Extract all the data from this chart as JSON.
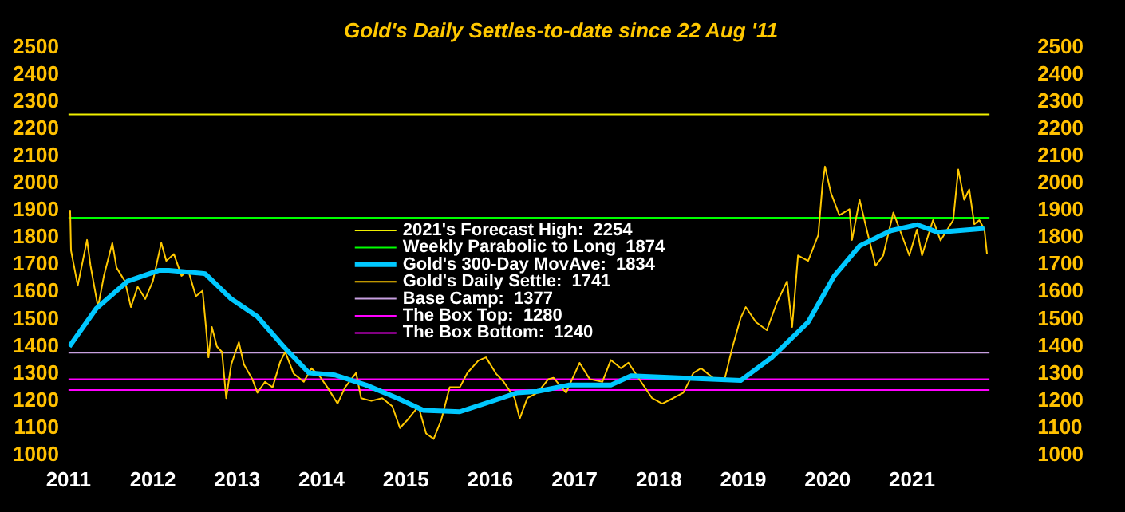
{
  "chart_data": {
    "type": "line",
    "title": "Gold's Daily Settles-to-date since 22 Aug '11",
    "xlim": [
      2011,
      2021.92
    ],
    "xticks": [
      2011,
      2012,
      2013,
      2014,
      2015,
      2016,
      2017,
      2018,
      2019,
      2020,
      2021
    ],
    "ylim": [
      1000,
      2500
    ],
    "yticks": [
      1000,
      1100,
      1200,
      1300,
      1400,
      1500,
      1600,
      1700,
      1800,
      1900,
      2000,
      2100,
      2200,
      2300,
      2400,
      2500
    ],
    "y2lim": [
      1000,
      2500
    ],
    "y2ticks": [
      1000,
      1100,
      1200,
      1300,
      1400,
      1500,
      1600,
      1700,
      1800,
      1900,
      2000,
      2100,
      2200,
      2300,
      2400,
      2500
    ],
    "grid": false,
    "legend": "center",
    "marker": "none",
    "line_style": "solid",
    "series": [
      {
        "name": "Gold's 300-Day MovAve:  1834",
        "color": "#00c8ff",
        "x": [
          2011.01,
          2011.33,
          2011.7,
          2012.07,
          2012.19,
          2012.62,
          2012.93,
          2013.24,
          2013.55,
          2013.85,
          2014.16,
          2014.53,
          2014.9,
          2015.21,
          2015.64,
          2016.13,
          2016.32,
          2016.56,
          2016.93,
          2017.43,
          2017.67,
          2018.23,
          2018.97,
          2019.34,
          2019.77,
          2020.08,
          2020.38,
          2020.75,
          2021.06,
          2021.31,
          2021.86
        ],
        "values": [
          1400,
          1540,
          1640,
          1680,
          1680,
          1668,
          1575,
          1510,
          1400,
          1303,
          1295,
          1258,
          1210,
          1165,
          1160,
          1210,
          1230,
          1235,
          1258,
          1258,
          1292,
          1285,
          1275,
          1360,
          1490,
          1660,
          1770,
          1826,
          1848,
          1820,
          1834
        ]
      },
      {
        "name": "Gold's Daily Settle:  1741",
        "color": "#ffc800",
        "x": [
          2011.01,
          2011.02,
          2011.03,
          2011.11,
          2011.22,
          2011.26,
          2011.35,
          2011.42,
          2011.52,
          2011.57,
          2011.67,
          2011.74,
          2011.82,
          2011.91,
          2012.0,
          2012.1,
          2012.16,
          2012.25,
          2012.34,
          2012.42,
          2012.51,
          2012.59,
          2012.63,
          2012.66,
          2012.7,
          2012.76,
          2012.82,
          2012.87,
          2012.93,
          2013.02,
          2013.08,
          2013.18,
          2013.24,
          2013.33,
          2013.42,
          2013.51,
          2013.57,
          2013.67,
          2013.79,
          2013.88,
          2013.98,
          2014.07,
          2014.19,
          2014.28,
          2014.41,
          2014.47,
          2014.59,
          2014.72,
          2014.84,
          2014.93,
          2015.02,
          2015.15,
          2015.24,
          2015.33,
          2015.42,
          2015.52,
          2015.64,
          2015.73,
          2015.86,
          2015.95,
          2016.07,
          2016.16,
          2016.29,
          2016.35,
          2016.44,
          2016.56,
          2016.69,
          2016.75,
          2016.9,
          2017.06,
          2017.18,
          2017.33,
          2017.43,
          2017.55,
          2017.64,
          2017.8,
          2017.92,
          2018.04,
          2018.17,
          2018.29,
          2018.41,
          2018.5,
          2018.66,
          2018.78,
          2018.87,
          2018.97,
          2019.03,
          2019.15,
          2019.28,
          2019.4,
          2019.52,
          2019.58,
          2019.65,
          2019.77,
          2019.89,
          2019.94,
          2019.97,
          2020.04,
          2020.14,
          2020.26,
          2020.29,
          2020.38,
          2020.48,
          2020.57,
          2020.66,
          2020.78,
          2020.88,
          2020.97,
          2021.06,
          2021.12,
          2021.25,
          2021.34,
          2021.49,
          2021.55,
          2021.62,
          2021.68,
          2021.74,
          2021.8,
          2021.86,
          2021.89
        ],
        "values": [
          1893,
          1900,
          1753,
          1624,
          1792,
          1700,
          1545,
          1660,
          1781,
          1690,
          1640,
          1545,
          1620,
          1575,
          1640,
          1781,
          1715,
          1740,
          1660,
          1680,
          1585,
          1605,
          1472,
          1360,
          1472,
          1400,
          1380,
          1210,
          1334,
          1416,
          1334,
          1280,
          1230,
          1270,
          1250,
          1343,
          1380,
          1300,
          1270,
          1320,
          1290,
          1250,
          1190,
          1250,
          1303,
          1210,
          1200,
          1210,
          1180,
          1100,
          1130,
          1180,
          1080,
          1060,
          1130,
          1250,
          1250,
          1303,
          1348,
          1360,
          1300,
          1270,
          1210,
          1135,
          1210,
          1230,
          1280,
          1285,
          1230,
          1340,
          1280,
          1270,
          1350,
          1320,
          1340,
          1265,
          1210,
          1190,
          1210,
          1230,
          1303,
          1320,
          1280,
          1280,
          1395,
          1505,
          1545,
          1490,
          1460,
          1562,
          1640,
          1472,
          1735,
          1715,
          1810,
          1995,
          2062,
          1965,
          1883,
          1905,
          1792,
          1940,
          1810,
          1697,
          1735,
          1893,
          1810,
          1735,
          1830,
          1735,
          1865,
          1790,
          1865,
          2051,
          1940,
          1978,
          1850,
          1865,
          1830,
          1741
        ]
      }
    ],
    "ref_lines": [
      {
        "axis": "y",
        "value": 2254,
        "label": "2021's Forecast High:  2254",
        "color": "#f0f000"
      },
      {
        "axis": "y",
        "value": 1874,
        "label": "Weekly Parabolic to Long  1874",
        "color": "#00ff00"
      },
      {
        "axis": "y",
        "value": 1377,
        "label": "Base Camp:  1377",
        "color": "#c8a0e0"
      },
      {
        "axis": "y",
        "value": 1280,
        "label": "The Box Top:  1280",
        "color": "#ff00ff"
      },
      {
        "axis": "y",
        "value": 1240,
        "label": "The Box Bottom:  1240",
        "color": "#ff00ff"
      }
    ]
  }
}
